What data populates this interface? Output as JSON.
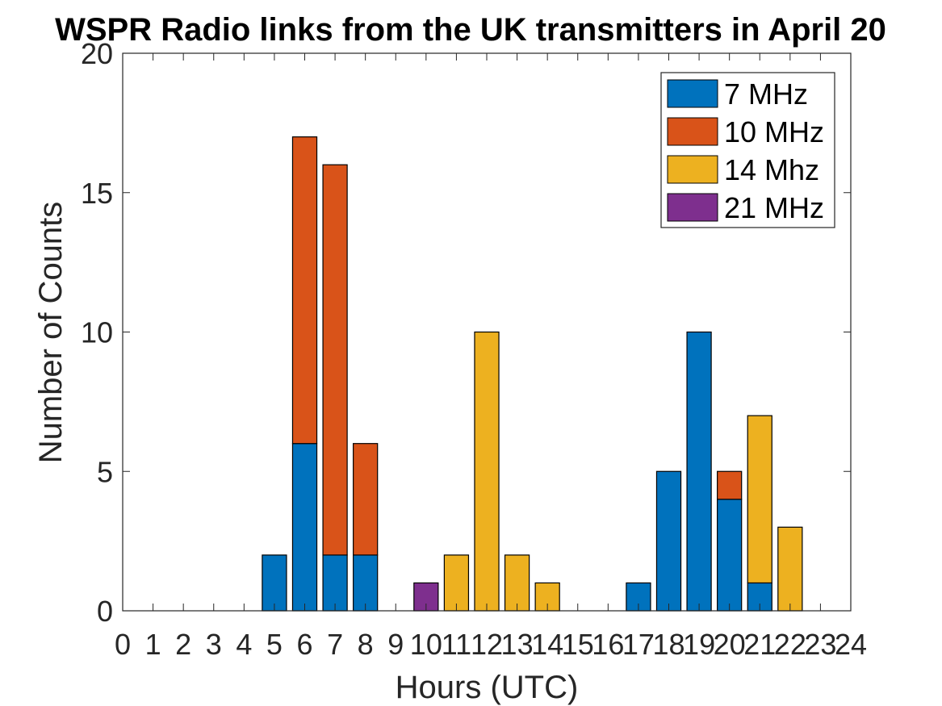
{
  "chart_data": {
    "type": "bar",
    "stacked": true,
    "title": "WSPR Radio links from the UK transmitters in April 20",
    "xlabel": "Hours (UTC)",
    "ylabel": "Number of Counts",
    "xlim": [
      0,
      24
    ],
    "ylim": [
      0,
      20
    ],
    "xticks": [
      "0",
      "1",
      "2",
      "3",
      "4",
      "5",
      "6",
      "7",
      "8",
      "9",
      "10",
      "11",
      "12",
      "13",
      "14",
      "15",
      "16",
      "17",
      "18",
      "19",
      "20",
      "21",
      "22",
      "23",
      "24"
    ],
    "yticks": [
      "0",
      "5",
      "10",
      "15",
      "20"
    ],
    "categories": [
      5,
      6,
      7,
      8,
      10,
      11,
      12,
      13,
      14,
      17,
      18,
      19,
      20,
      21,
      22
    ],
    "grid": false,
    "legend_position": "top-right",
    "series": [
      {
        "name": "7 MHz",
        "color": "#0072BD",
        "values": [
          2,
          6,
          2,
          2,
          0,
          0,
          0,
          0,
          0,
          1,
          5,
          10,
          4,
          1,
          0
        ]
      },
      {
        "name": "10 MHz",
        "color": "#D95319",
        "values": [
          0,
          11,
          14,
          4,
          0,
          0,
          0,
          0,
          0,
          0,
          0,
          0,
          1,
          0,
          0
        ]
      },
      {
        "name": "14 Mhz",
        "color": "#EDB120",
        "values": [
          0,
          0,
          0,
          0,
          0,
          2,
          10,
          2,
          1,
          0,
          0,
          0,
          0,
          6,
          3
        ]
      },
      {
        "name": "21 MHz",
        "color": "#7E2F8E",
        "values": [
          0,
          0,
          0,
          0,
          1,
          0,
          0,
          0,
          0,
          0,
          0,
          0,
          0,
          0,
          0
        ]
      }
    ]
  }
}
